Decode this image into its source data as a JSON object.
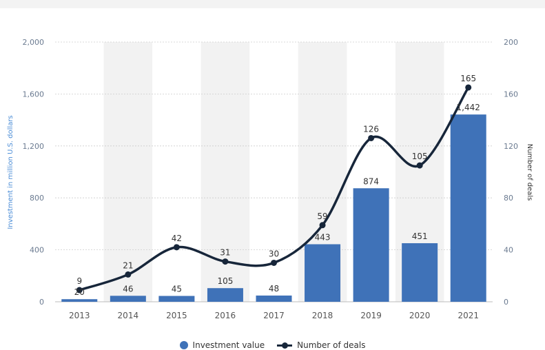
{
  "colors": {
    "bar": "#3f72b8",
    "line": "#17263a",
    "band": "#f2f2f2",
    "grid": "#cccccc",
    "left_axis": "#4a8cd6",
    "right_axis": "#333333"
  },
  "chart_data": {
    "type": "bar",
    "categories": [
      "2013",
      "2014",
      "2015",
      "2016",
      "2017",
      "2018",
      "2019",
      "2020",
      "2021"
    ],
    "series": [
      {
        "name": "Investment value",
        "kind": "bar",
        "axis": "left",
        "values": [
          20,
          46,
          45,
          105,
          48,
          443,
          874,
          451,
          1442
        ],
        "labels": [
          "20",
          "46",
          "45",
          "105",
          "48",
          "443",
          "874",
          "451",
          "1,442"
        ]
      },
      {
        "name": "Number of deals",
        "kind": "line",
        "axis": "right",
        "values": [
          9,
          21,
          42,
          31,
          30,
          59,
          126,
          105,
          165
        ],
        "labels": [
          "9",
          "21",
          "42",
          "31",
          "30",
          "59",
          "126",
          "105",
          "165"
        ]
      }
    ],
    "left_axis": {
      "label": "Investment in million U.S. dollars",
      "ylim": [
        0,
        2000
      ],
      "ticks": [
        0,
        400,
        800,
        1200,
        1600,
        2000
      ],
      "tick_labels": [
        "0",
        "400",
        "800",
        "1,200",
        "1,600",
        "2,000"
      ]
    },
    "right_axis": {
      "label": "Number of deals",
      "ylim": [
        0,
        200
      ],
      "ticks": [
        0,
        40,
        80,
        120,
        160,
        200
      ],
      "tick_labels": [
        "0",
        "40",
        "80",
        "120",
        "160",
        "200"
      ]
    },
    "grid": true,
    "alternating_bands": true,
    "legend_position": "bottom-center"
  },
  "legend": {
    "items": [
      {
        "label": "Investment value"
      },
      {
        "label": "Number of deals"
      }
    ]
  }
}
